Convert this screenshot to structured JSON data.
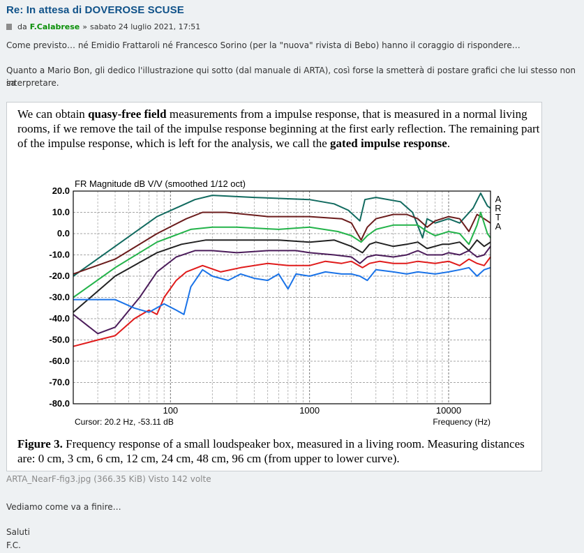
{
  "post": {
    "title": "Re: In attesa di DOVEROSE SCUSE",
    "meta_prefix": "da",
    "author": "F.Calabrese",
    "meta_sep": "»",
    "date": "sabato 24 luglio 2021, 17:51",
    "paragraph1": "Come previsto… né Emidio Frattaroli né Francesco Sorino (per la \"nuova\" rivista di Bebo) hanno il coraggio di rispondere…",
    "paragraph2_line1": "Quanto a Mario Bon, gli dedico l'illustrazione qui sotto (dal manuale di ARTA), così forse la smetterà di postare grafici che lui stesso non sa",
    "paragraph2_line2": "interpretare.",
    "closing": "Vediamo come va a finire…",
    "sign1": "Saluti",
    "sign2": "F.C."
  },
  "figure": {
    "text_a": "We can obtain ",
    "text_b": "quasy-free field",
    "text_c": " measurements from a impulse response, that is measured in a normal living rooms, if we remove the tail of the impulse response beginning at the first early reflection. The remaining part of the impulse response, which is left for the analysis, we call the ",
    "text_d": "gated impulse response",
    "text_e": ".",
    "caption_label": "Figure 3.",
    "caption_text": " Frequency response of a small loudspeaker box, measured in a living room. Measuring distances are: 0 cm, 3 cm, 6 cm, 12 cm, 24 cm, 48 cm, 96 cm (from upper to lower curve)."
  },
  "attachment": {
    "filename": "ARTA_NearF-fig3.jpg",
    "size": "(366.35 KiB)",
    "views": "Visto 142 volte"
  },
  "chart_data": {
    "type": "line",
    "title": "FR Magnitude dB V/V (smoothed 1/12 oct)",
    "brand": "ARTA",
    "cursor": "Cursor: 20.2 Hz, -53.11 dB",
    "xlabel": "Frequency (Hz)",
    "xscale": "log",
    "xlim": [
      20,
      20000
    ],
    "ylim": [
      -80,
      20
    ],
    "xtick_labels": [
      "100",
      "1000",
      "10000"
    ],
    "xticks": [
      100,
      1000,
      10000
    ],
    "ytick_labels": [
      "20.0",
      "10.0",
      "0.0",
      "-10.0",
      "-20.0",
      "-30.0",
      "-40.0",
      "-50.0",
      "-60.0",
      "-70.0",
      "-80.0"
    ],
    "yticks": [
      20,
      10,
      0,
      -10,
      -20,
      -30,
      -40,
      -50,
      -60,
      -70,
      -80
    ],
    "grid": true,
    "series": [
      {
        "color": "#116a5f",
        "points": [
          [
            20,
            -20
          ],
          [
            40,
            -6
          ],
          [
            80,
            8
          ],
          [
            150,
            16
          ],
          [
            200,
            18
          ],
          [
            400,
            17
          ],
          [
            1000,
            16
          ],
          [
            1500,
            14
          ],
          [
            1900,
            11
          ],
          [
            2300,
            6
          ],
          [
            2500,
            16
          ],
          [
            3000,
            17
          ],
          [
            4500,
            15
          ],
          [
            5500,
            10
          ],
          [
            6500,
            -2
          ],
          [
            7000,
            7
          ],
          [
            8000,
            5
          ],
          [
            10000,
            7
          ],
          [
            12000,
            5
          ],
          [
            15000,
            12
          ],
          [
            17000,
            19
          ],
          [
            19000,
            13
          ],
          [
            20000,
            12
          ]
        ]
      },
      {
        "color": "#6b1c1c",
        "points": [
          [
            20,
            -19
          ],
          [
            40,
            -12
          ],
          [
            80,
            0
          ],
          [
            130,
            7
          ],
          [
            170,
            10
          ],
          [
            250,
            10
          ],
          [
            500,
            8
          ],
          [
            1000,
            8
          ],
          [
            1700,
            7
          ],
          [
            2000,
            5
          ],
          [
            2350,
            -3
          ],
          [
            2600,
            3
          ],
          [
            3000,
            7
          ],
          [
            4000,
            9
          ],
          [
            5000,
            9
          ],
          [
            6000,
            7
          ],
          [
            7000,
            3
          ],
          [
            8000,
            6
          ],
          [
            10000,
            8
          ],
          [
            12000,
            7
          ],
          [
            14000,
            1
          ],
          [
            16000,
            9
          ],
          [
            18000,
            7
          ],
          [
            20000,
            5
          ]
        ]
      },
      {
        "color": "#23b34a",
        "points": [
          [
            20,
            -30
          ],
          [
            40,
            -16
          ],
          [
            80,
            -4
          ],
          [
            140,
            2
          ],
          [
            200,
            3
          ],
          [
            300,
            3
          ],
          [
            600,
            2
          ],
          [
            1000,
            3
          ],
          [
            1600,
            1
          ],
          [
            2000,
            -1
          ],
          [
            2350,
            -4
          ],
          [
            2600,
            -1
          ],
          [
            3000,
            2
          ],
          [
            4000,
            4
          ],
          [
            5000,
            4
          ],
          [
            6000,
            4
          ],
          [
            7000,
            1
          ],
          [
            8000,
            -1
          ],
          [
            10000,
            1
          ],
          [
            12000,
            0
          ],
          [
            14000,
            -5
          ],
          [
            16000,
            4
          ],
          [
            17000,
            10
          ],
          [
            19000,
            0
          ],
          [
            20000,
            -2
          ]
        ]
      },
      {
        "color": "#222222",
        "points": [
          [
            20,
            -37
          ],
          [
            40,
            -20
          ],
          [
            80,
            -9
          ],
          [
            120,
            -5
          ],
          [
            180,
            -3
          ],
          [
            300,
            -3
          ],
          [
            600,
            -3
          ],
          [
            1000,
            -4
          ],
          [
            1500,
            -3
          ],
          [
            2000,
            -6
          ],
          [
            2400,
            -9
          ],
          [
            2700,
            -5
          ],
          [
            3000,
            -4
          ],
          [
            4000,
            -6
          ],
          [
            5000,
            -5
          ],
          [
            6000,
            -4
          ],
          [
            7000,
            -7
          ],
          [
            9000,
            -5
          ],
          [
            10000,
            -5
          ],
          [
            12000,
            -4
          ],
          [
            14000,
            -8
          ],
          [
            16000,
            -3
          ],
          [
            18000,
            -6
          ],
          [
            20000,
            -4
          ]
        ]
      },
      {
        "color": "#4b1c5a",
        "points": [
          [
            20,
            -38
          ],
          [
            30,
            -47
          ],
          [
            40,
            -44
          ],
          [
            60,
            -30
          ],
          [
            80,
            -18
          ],
          [
            110,
            -11
          ],
          [
            150,
            -8
          ],
          [
            200,
            -8
          ],
          [
            300,
            -9
          ],
          [
            500,
            -8
          ],
          [
            800,
            -8
          ],
          [
            1000,
            -9
          ],
          [
            1500,
            -10
          ],
          [
            2000,
            -11
          ],
          [
            2300,
            -14
          ],
          [
            2600,
            -11
          ],
          [
            3000,
            -10
          ],
          [
            4000,
            -11
          ],
          [
            5000,
            -10
          ],
          [
            6000,
            -8
          ],
          [
            7000,
            -10
          ],
          [
            9000,
            -10
          ],
          [
            10000,
            -9
          ],
          [
            12000,
            -10
          ],
          [
            14000,
            -8
          ],
          [
            16000,
            -11
          ],
          [
            18000,
            -10
          ],
          [
            20000,
            -6
          ]
        ]
      },
      {
        "color": "#e01b1b",
        "points": [
          [
            20,
            -53
          ],
          [
            30,
            -50
          ],
          [
            40,
            -48
          ],
          [
            55,
            -40
          ],
          [
            70,
            -36
          ],
          [
            80,
            -38
          ],
          [
            90,
            -30
          ],
          [
            110,
            -22
          ],
          [
            130,
            -18
          ],
          [
            170,
            -15
          ],
          [
            230,
            -18
          ],
          [
            320,
            -16
          ],
          [
            500,
            -14
          ],
          [
            700,
            -15
          ],
          [
            1000,
            -15
          ],
          [
            1300,
            -13
          ],
          [
            1700,
            -14
          ],
          [
            2000,
            -13
          ],
          [
            2400,
            -16
          ],
          [
            2700,
            -14
          ],
          [
            3200,
            -13
          ],
          [
            4000,
            -14
          ],
          [
            5000,
            -14
          ],
          [
            6000,
            -13
          ],
          [
            8000,
            -14
          ],
          [
            10000,
            -13
          ],
          [
            12000,
            -15
          ],
          [
            14000,
            -12
          ],
          [
            16000,
            -14
          ],
          [
            18000,
            -15
          ],
          [
            20000,
            -11
          ]
        ]
      },
      {
        "color": "#1a73e8",
        "points": [
          [
            20,
            -31
          ],
          [
            40,
            -31
          ],
          [
            55,
            -35
          ],
          [
            70,
            -37
          ],
          [
            90,
            -33
          ],
          [
            110,
            -36
          ],
          [
            125,
            -38
          ],
          [
            140,
            -25
          ],
          [
            170,
            -17
          ],
          [
            200,
            -20
          ],
          [
            260,
            -22
          ],
          [
            320,
            -19
          ],
          [
            400,
            -21
          ],
          [
            500,
            -22
          ],
          [
            600,
            -19
          ],
          [
            700,
            -26
          ],
          [
            800,
            -19
          ],
          [
            1000,
            -20
          ],
          [
            1300,
            -18
          ],
          [
            1700,
            -19
          ],
          [
            2000,
            -19
          ],
          [
            2300,
            -20
          ],
          [
            2600,
            -22
          ],
          [
            3000,
            -17
          ],
          [
            4000,
            -18
          ],
          [
            5000,
            -19
          ],
          [
            6000,
            -18
          ],
          [
            8000,
            -19
          ],
          [
            10000,
            -18
          ],
          [
            12000,
            -17
          ],
          [
            14000,
            -16
          ],
          [
            16000,
            -20
          ],
          [
            18000,
            -17
          ],
          [
            20000,
            -16
          ]
        ]
      }
    ]
  }
}
